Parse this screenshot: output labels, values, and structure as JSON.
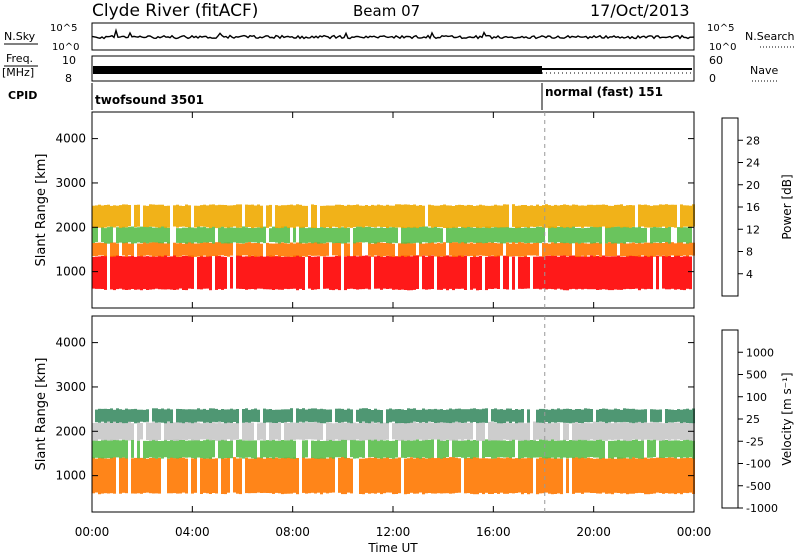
{
  "header": {
    "station": "Clyde River (fitACF)",
    "beam": "Beam 07",
    "date": "17/Oct/2013"
  },
  "status_panels": {
    "nsky_label": "N.Sky",
    "nsky_ticks": [
      "10^5",
      "10^0"
    ],
    "nsearch_label": "N.Search",
    "nsearch_ticks": [
      "10^5",
      "10^0"
    ],
    "freq_label_1": "Freq.",
    "freq_label_2": "[MHz]",
    "freq_ticks": [
      "10",
      "8"
    ],
    "nave_label": "Nave",
    "nave_ticks": [
      "60",
      "0"
    ],
    "cpid_label": "CPID",
    "modes": [
      {
        "name": "twofsound 3501",
        "start_hour": 0,
        "end_hour": 18.05
      },
      {
        "name": "normal (fast) 151",
        "start_hour": 18.05,
        "end_hour": 24
      }
    ]
  },
  "time_axis": {
    "title": "Time UT",
    "ticks": [
      "00:00",
      "04:00",
      "08:00",
      "12:00",
      "16:00",
      "20:00",
      "00:00"
    ]
  },
  "chart_data": [
    {
      "type": "heatmap",
      "name": "power",
      "ylabel": "Slant Range [km]",
      "yticks": [
        1000,
        2000,
        3000,
        4000
      ],
      "ylim": [
        180,
        4600
      ],
      "xlim_hours": [
        0,
        24
      ],
      "colorbar_label": "Power [dB]",
      "colorbar_ticks": [
        "28",
        "24",
        "20",
        "16",
        "12",
        "8",
        "4"
      ],
      "colorbar_colors": [
        "#0000ff",
        "#1e46b4",
        "#3c8c64",
        "#5abe4b",
        "#f0aa00",
        "#ff7800",
        "#ff3c00",
        "#ff0000"
      ],
      "bands": [
        {
          "range_km": [
            600,
            1350
          ],
          "value_dB": 28,
          "from_hour": 0,
          "to_hour": 24
        },
        {
          "range_km": [
            1350,
            1650
          ],
          "value_dB": 20,
          "from_hour": 0,
          "to_hour": 24
        },
        {
          "range_km": [
            1650,
            2000
          ],
          "value_dB": 12,
          "from_hour": 0,
          "to_hour": 24
        },
        {
          "range_km": [
            2000,
            2500
          ],
          "value_dB": 16,
          "from_hour": 0,
          "to_hour": 24
        }
      ]
    },
    {
      "type": "heatmap",
      "name": "velocity",
      "ylabel": "Slant Range [km]",
      "yticks": [
        1000,
        2000,
        3000,
        4000
      ],
      "ylim": [
        180,
        4600
      ],
      "xlim_hours": [
        0,
        24
      ],
      "colorbar_label": "Velocity [m s⁻¹]",
      "colorbar_ticks": [
        "1000",
        "500",
        "100",
        "25",
        "-25",
        "-100",
        "-500",
        "-1000"
      ],
      "colorbar_colors": [
        "#1e46b4",
        "#3c8c64",
        "#5abe4b",
        "#c8c8c8",
        "#f0aa00",
        "#ff7800",
        "#ff3c00",
        "#ff0000"
      ],
      "bands": [
        {
          "range_km": [
            600,
            1400
          ],
          "value_ms": -100,
          "from_hour": 0,
          "to_hour": 24
        },
        {
          "range_km": [
            1400,
            1800
          ],
          "value_ms": 100,
          "from_hour": 0,
          "to_hour": 24
        },
        {
          "range_km": [
            1800,
            2200
          ],
          "value_ms": 25,
          "from_hour": 0,
          "to_hour": 24
        },
        {
          "range_km": [
            2200,
            2500
          ],
          "value_ms": 500,
          "from_hour": 0,
          "to_hour": 24
        }
      ]
    }
  ]
}
